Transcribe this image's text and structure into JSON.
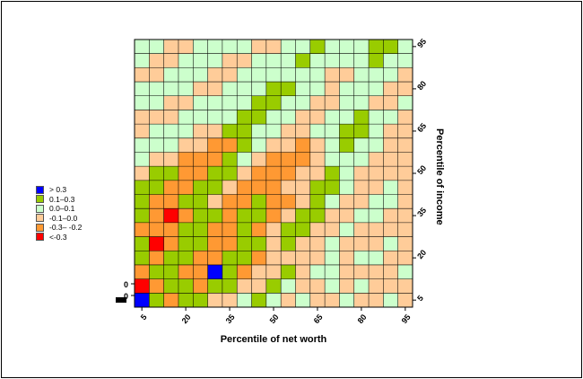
{
  "chart": {
    "xlabel": "Percentile of net worth",
    "ylabel": "Percentile of income",
    "x_ticks": [
      5,
      20,
      35,
      50,
      65,
      80,
      95
    ],
    "y_ticks": [
      5,
      20,
      35,
      50,
      65,
      80,
      95
    ],
    "origin_labels": [
      "0",
      "0"
    ],
    "legend": [
      {
        "key": "B",
        "label": "> 0.3",
        "color": "#0000FF"
      },
      {
        "key": "G",
        "label": "0.1–0.3",
        "color": "#99CC00"
      },
      {
        "key": "g",
        "label": "0.0–0.1",
        "color": "#CCFFCC"
      },
      {
        "key": "p",
        "label": "-0.1–0.0",
        "color": "#FFCC99"
      },
      {
        "key": "O",
        "label": "-0.3– -0.2",
        "color": "#FF9933"
      },
      {
        "key": "R",
        "label": "<-0.3",
        "color": "#FF0000"
      }
    ]
  },
  "chart_data": {
    "type": "heatmap",
    "title": "",
    "xlabel": "Percentile of net worth",
    "ylabel": "Percentile of income",
    "x_percentiles": [
      5,
      10,
      15,
      20,
      25,
      30,
      35,
      40,
      45,
      50,
      55,
      60,
      65,
      70,
      75,
      80,
      85,
      90,
      95
    ],
    "y_percentiles": [
      5,
      10,
      15,
      20,
      25,
      30,
      35,
      40,
      45,
      50,
      55,
      60,
      65,
      70,
      75,
      80,
      85,
      90,
      95
    ],
    "legend_position": "left",
    "grid": true,
    "value_bins": {
      "B": {
        "range": "> 0.3",
        "representative": 0.35
      },
      "G": {
        "range": "0.1 to 0.3",
        "representative": 0.2
      },
      "g": {
        "range": "0.0 to 0.1",
        "representative": 0.05
      },
      "p": {
        "range": "-0.1 to 0.0",
        "representative": -0.05
      },
      "O": {
        "range": "-0.3 to -0.2",
        "representative": -0.25
      },
      "R": {
        "range": "< -0.3",
        "representative": -0.4
      }
    },
    "grid_rows_top_to_bottom": [
      "ggppggggppggGgggGGg",
      "gppgggppgggGggggGgg",
      "ppgggppggggggppgggp",
      "ggggppgggGGggpgggpp",
      "ggppggggGGggppggppg",
      "pppggggGGggppggGggp",
      "pgggppGGggppggGGgpp",
      "gggppOOGgppOpgGggpp",
      "gppOOOGgpOOOpgggppp",
      "pGGOOGGpOOOppGgpppp",
      "GGOOGGpOOOppGGgppgp",
      "GOOGGpOOGOOpGgppggp",
      "GOROGGOGGOpGGppggpp",
      "OOOGGOOGOpGGppgpppp",
      "GROGGOOGGpGppgpppgp",
      "GOGGOOGGOppppgpggpp",
      "OGGOOBGOppGpggppppg",
      "ROGGOGGppGgppgpgppp",
      "BGOGGppgGgpgppgppgp"
    ]
  }
}
